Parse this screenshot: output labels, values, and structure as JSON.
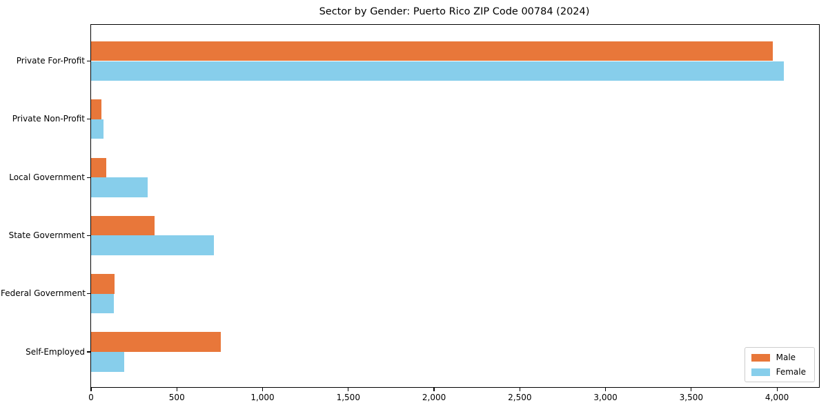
{
  "title": "Sector by Gender: Puerto Rico ZIP Code 00784 (2024)",
  "chart_data": {
    "type": "bar",
    "orientation": "horizontal",
    "title": "Sector by Gender: Puerto Rico ZIP Code 00784 (2024)",
    "categories": [
      "Private For-Profit",
      "Private Non-Profit",
      "Local Government",
      "State Government",
      "Federal Government",
      "Self-Employed"
    ],
    "series": [
      {
        "name": "Male",
        "color": "#e8773a",
        "values": [
          3975,
          62,
          89,
          370,
          137,
          757
        ]
      },
      {
        "name": "Female",
        "color": "#87ceeb",
        "values": [
          4040,
          72,
          330,
          716,
          133,
          193
        ]
      }
    ],
    "xlabel": "",
    "ylabel": "",
    "xlim": [
      0,
      4245
    ],
    "xticks": [
      0,
      500,
      1000,
      1500,
      2000,
      2500,
      3000,
      3500,
      4000
    ],
    "xtick_labels": [
      "0",
      "500",
      "1,000",
      "1,500",
      "2,000",
      "2,500",
      "3,000",
      "3,500",
      "4,000"
    ],
    "grid": false,
    "legend_position": "lower right"
  }
}
